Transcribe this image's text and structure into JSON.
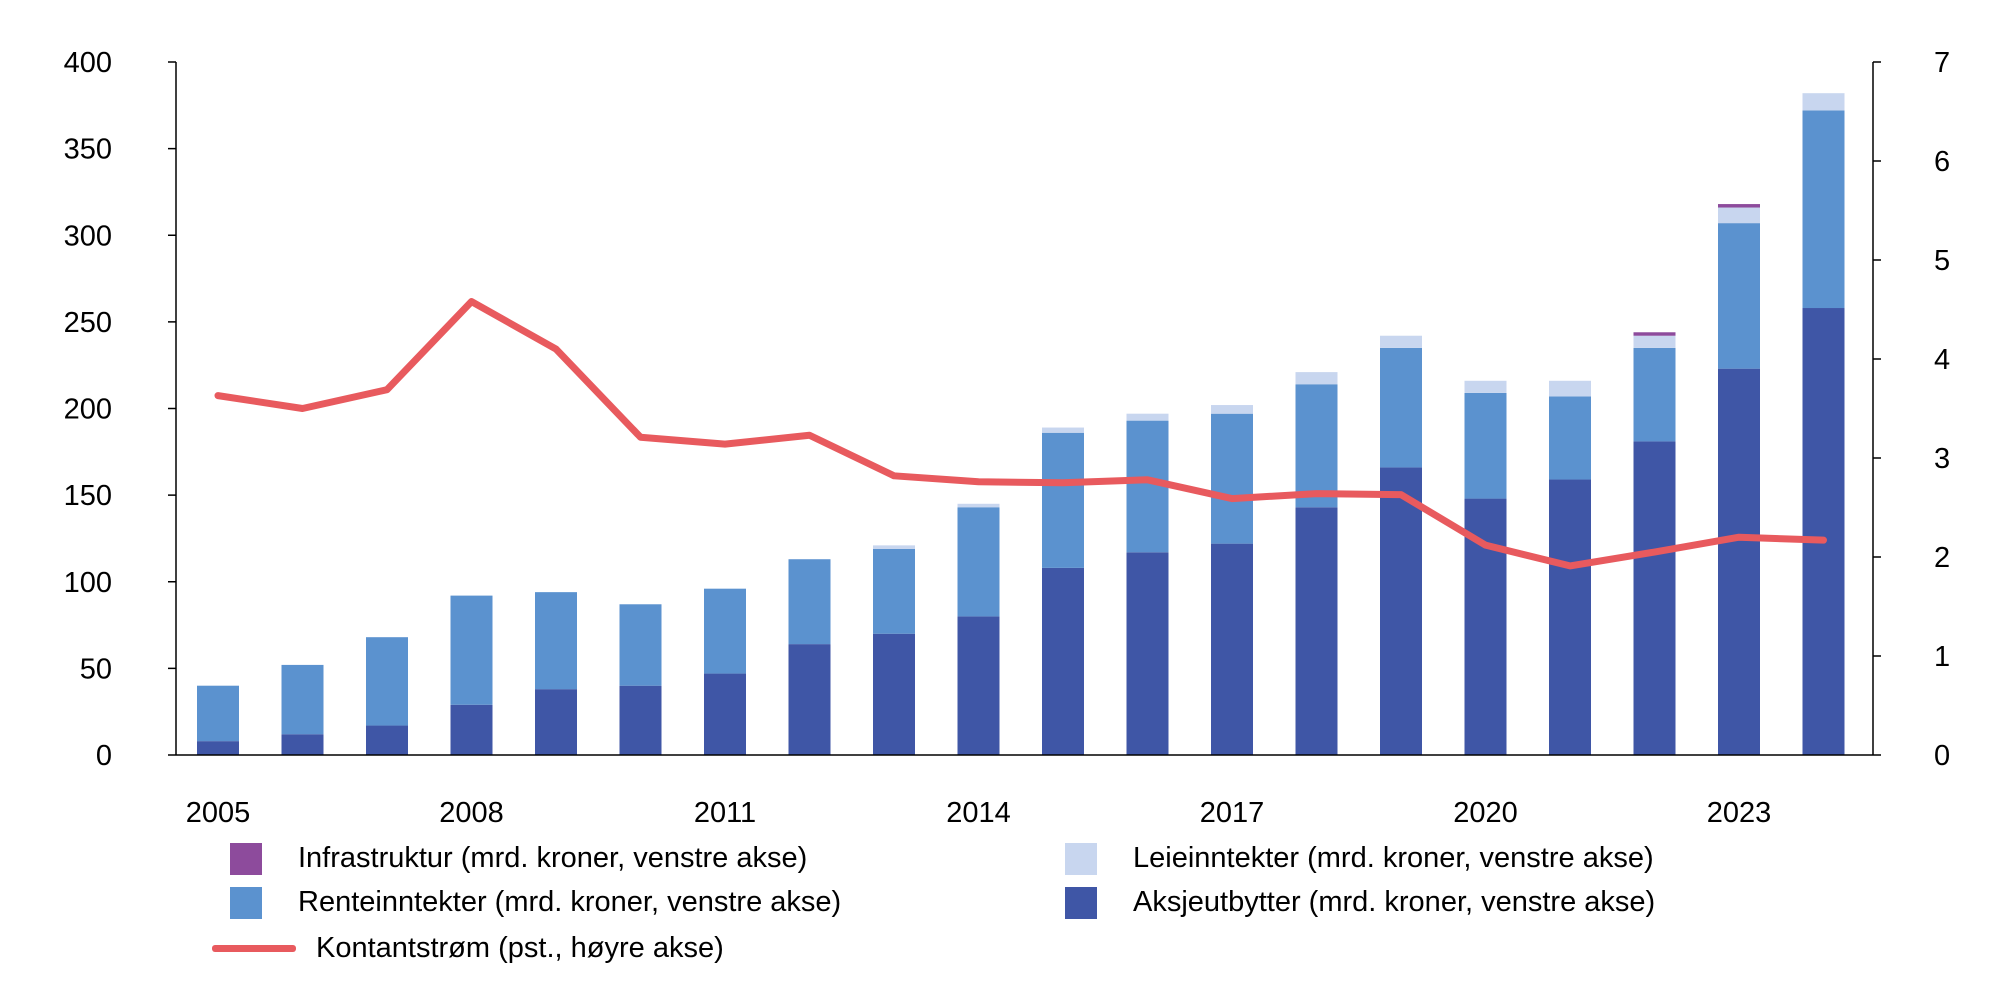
{
  "chart_data": {
    "type": "bar",
    "stacked": true,
    "x": [
      2005,
      2006,
      2007,
      2008,
      2009,
      2010,
      2011,
      2012,
      2013,
      2014,
      2015,
      2016,
      2017,
      2018,
      2019,
      2020,
      2021,
      2022,
      2023,
      2024
    ],
    "x_tick_labels": [
      "2005",
      "2008",
      "2011",
      "2014",
      "2017",
      "2020",
      "2023"
    ],
    "y_left_ticks": [
      "0",
      "50",
      "100",
      "150",
      "200",
      "250",
      "300",
      "350",
      "400"
    ],
    "y_right_ticks": [
      "0",
      "1",
      "2",
      "3",
      "4",
      "5",
      "6",
      "7"
    ],
    "ylim_left": [
      0,
      400
    ],
    "ylim_right": [
      0,
      7
    ],
    "grid": false,
    "legend_placement": "bottom",
    "series": [
      {
        "name": "Aksjeutbytter (mrd. kroner, venstre akse)",
        "kind": "bar",
        "axis": "left",
        "color": "#3f56a6",
        "values": [
          8,
          12,
          17,
          29,
          38,
          40,
          47,
          64,
          70,
          80,
          108,
          117,
          122,
          143,
          166,
          148,
          159,
          181,
          223,
          258
        ]
      },
      {
        "name": "Renteinntekter (mrd. kroner, venstre akse)",
        "kind": "bar",
        "axis": "left",
        "color": "#5b92cf",
        "values": [
          32,
          40,
          51,
          63,
          56,
          47,
          49,
          49,
          49,
          63,
          78,
          76,
          75,
          71,
          69,
          61,
          48,
          54,
          84,
          114
        ]
      },
      {
        "name": "Leieinntekter (mrd. kroner, venstre akse)",
        "kind": "bar",
        "axis": "left",
        "color": "#c8d6ef",
        "values": [
          0,
          0,
          0,
          0,
          0,
          0,
          0,
          0,
          2,
          2,
          3,
          4,
          5,
          7,
          7,
          7,
          9,
          7,
          9,
          10
        ]
      },
      {
        "name": "Infrastruktur (mrd. kroner, venstre akse)",
        "kind": "bar",
        "axis": "left",
        "color": "#8d4b9c",
        "values": [
          0,
          0,
          0,
          0,
          0,
          0,
          0,
          0,
          0,
          0,
          0,
          0,
          0,
          0,
          0,
          0,
          0,
          2,
          2,
          0
        ]
      },
      {
        "name": "Kontantstrøm (pst., høyre akse)",
        "kind": "line",
        "axis": "right",
        "color": "#e85a5e",
        "values": [
          3.63,
          3.5,
          3.69,
          4.58,
          4.1,
          3.21,
          3.14,
          3.23,
          2.82,
          2.76,
          2.75,
          2.78,
          2.59,
          2.64,
          2.63,
          2.12,
          1.91,
          2.05,
          2.2,
          2.17
        ]
      }
    ]
  },
  "legend": [
    {
      "label": "Infrastruktur (mrd. kroner, venstre akse)",
      "color": "#8d4b9c",
      "kind": "box"
    },
    {
      "label": "Leieinntekter (mrd. kroner, venstre akse)",
      "color": "#c8d6ef",
      "kind": "box"
    },
    {
      "label": "Renteinntekter (mrd. kroner, venstre akse)",
      "color": "#5b92cf",
      "kind": "box"
    },
    {
      "label": "Aksjeutbytter (mrd. kroner, venstre akse)",
      "color": "#3f56a6",
      "kind": "box"
    },
    {
      "label": "Kontantstrøm (pst., høyre akse)",
      "color": "#e85a5e",
      "kind": "line"
    }
  ]
}
